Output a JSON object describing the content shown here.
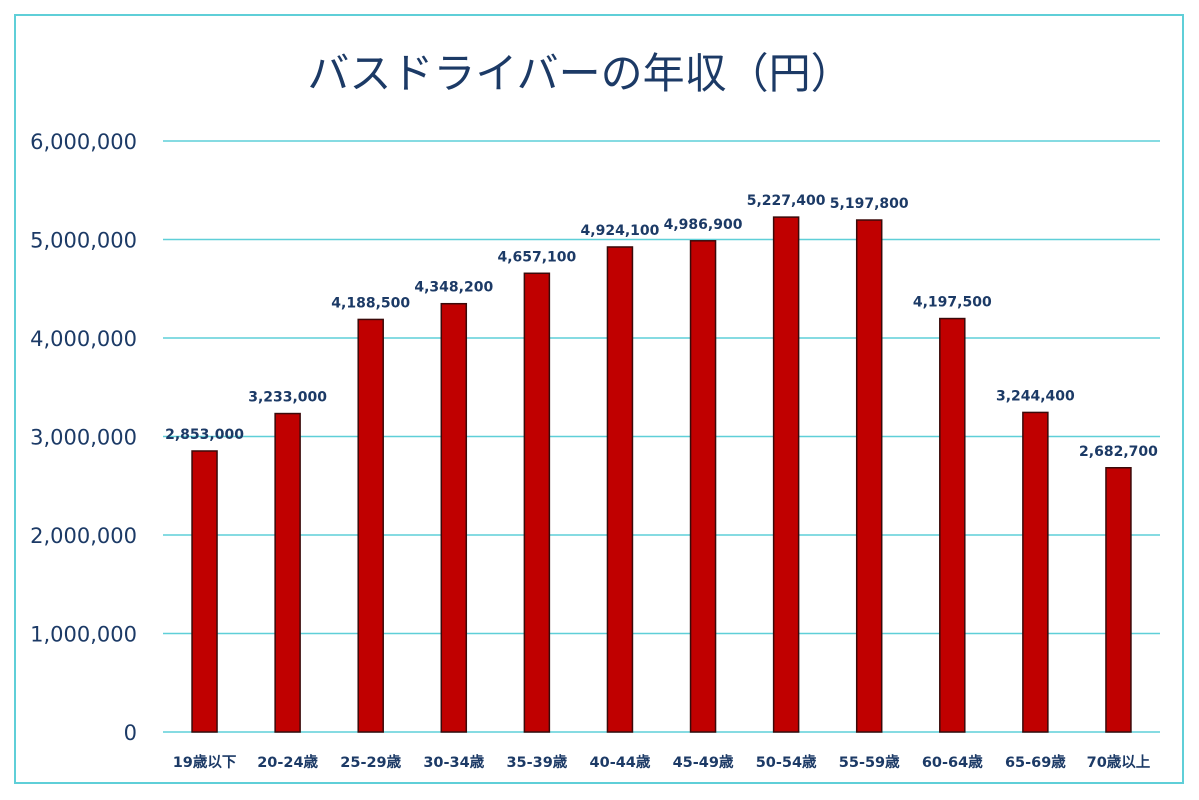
{
  "chart_data": {
    "type": "bar",
    "title": "バスドライバーの年収（円）",
    "xlabel": "",
    "ylabel": "",
    "ylim": [
      0,
      6000000
    ],
    "yticks": [
      0,
      1000000,
      2000000,
      3000000,
      4000000,
      5000000,
      6000000
    ],
    "ytick_labels": [
      "0",
      "1,000,000",
      "2,000,000",
      "3,000,000",
      "4,000,000",
      "5,000,000",
      "6,000,000"
    ],
    "grid": true,
    "categories": [
      "19歳以下",
      "20-24歳",
      "25-29歳",
      "30-34歳",
      "35-39歳",
      "40-44歳",
      "45-49歳",
      "50-54歳",
      "55-59歳",
      "60-64歳",
      "65-69歳",
      "70歳以上"
    ],
    "values": [
      2853000,
      3233000,
      4188500,
      4348200,
      4657100,
      4924100,
      4986900,
      5227400,
      5197800,
      4197500,
      3244400,
      2682700
    ],
    "data_labels": [
      "2,853,000",
      "3,233,000",
      "4,188,500",
      "4,348,200",
      "4,657,100",
      "4,924,100",
      "4,986,900",
      "5,227,400",
      "5,197,800",
      "4,197,500",
      "3,244,400",
      "2,682,700"
    ],
    "colors": {
      "bar": "#c00000",
      "bar_edge": "#3a0a0a",
      "grid": "#5fcfd8",
      "text": "#1c3a66",
      "frame": "#5fcfd8"
    }
  }
}
